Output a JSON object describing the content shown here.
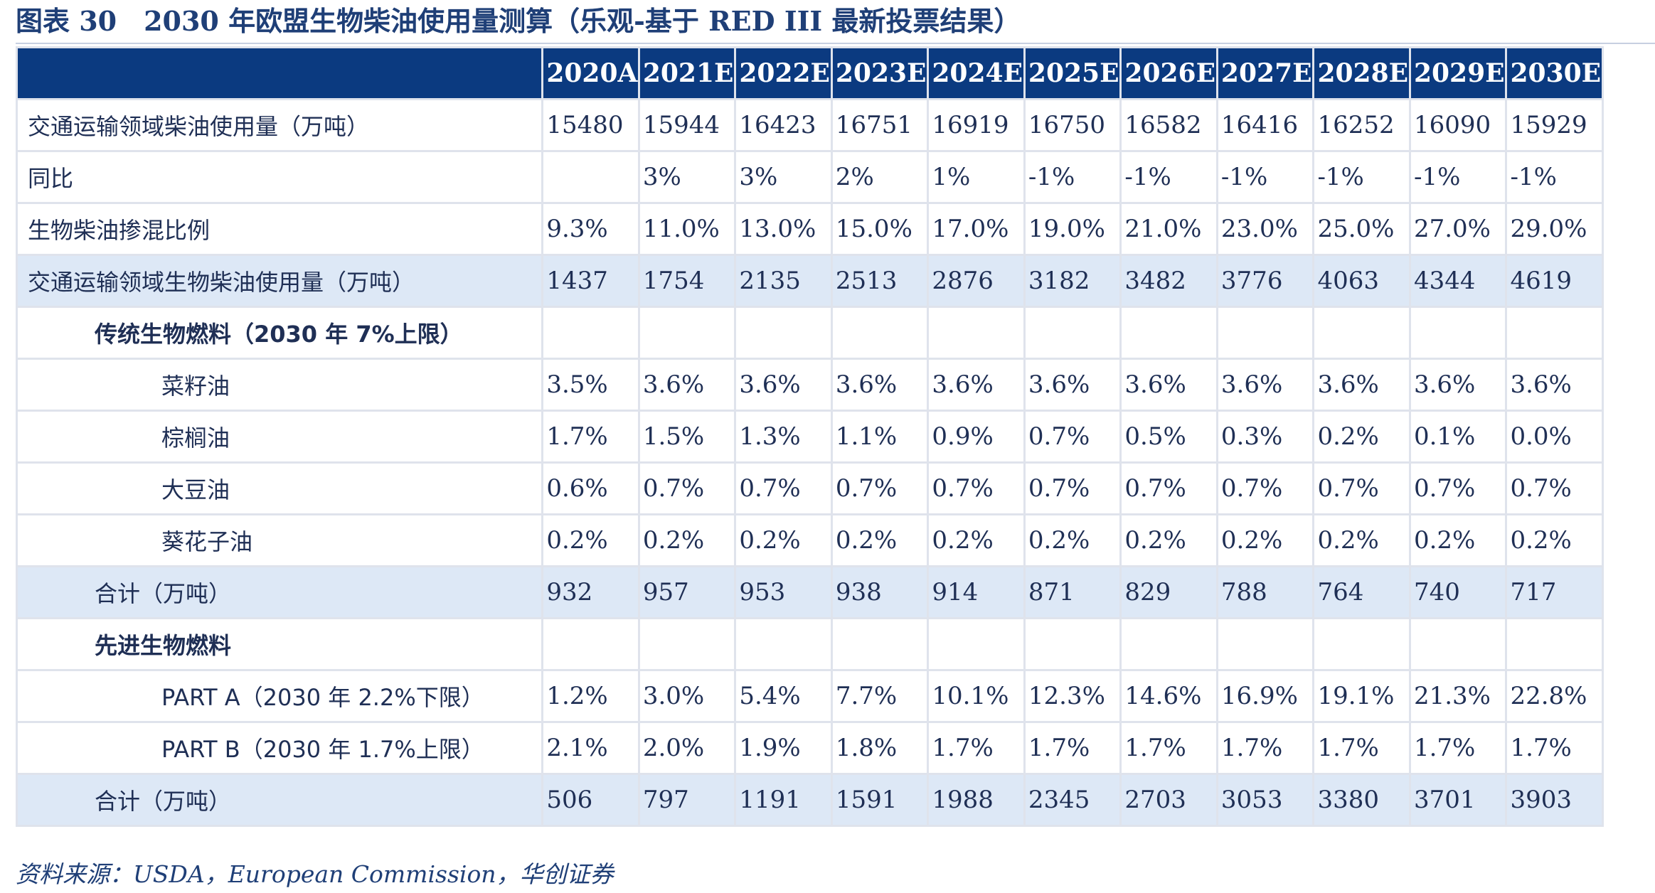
{
  "title": "图表 30　2030 年欧盟生物柴油使用量测算（乐观-基于 RED III 最新投票结果）",
  "table": {
    "columns": [
      "2020A",
      "2021E",
      "2022E",
      "2023E",
      "2024E",
      "2025E",
      "2026E",
      "2027E",
      "2028E",
      "2029E",
      "2030E"
    ],
    "rows": [
      {
        "label": "交通运输领域柴油使用量（万吨）",
        "values": [
          "15480",
          "15944",
          "16423",
          "16751",
          "16919",
          "16750",
          "16582",
          "16416",
          "16252",
          "16090",
          "15929"
        ]
      },
      {
        "label": "同比",
        "values": [
          "",
          "3%",
          "3%",
          "2%",
          "1%",
          "-1%",
          "-1%",
          "-1%",
          "-1%",
          "-1%",
          "-1%"
        ]
      },
      {
        "label": "生物柴油掺混比例",
        "values": [
          "9.3%",
          "11.0%",
          "13.0%",
          "15.0%",
          "17.0%",
          "19.0%",
          "21.0%",
          "23.0%",
          "25.0%",
          "27.0%",
          "29.0%"
        ]
      },
      {
        "label": "交通运输领域生物柴油使用量（万吨）",
        "values": [
          "1437",
          "1754",
          "2135",
          "2513",
          "2876",
          "3182",
          "3482",
          "3776",
          "4063",
          "4344",
          "4619"
        ]
      },
      {
        "label": "传统生物燃料（2030 年 7%上限）",
        "values": [
          "",
          "",
          "",
          "",
          "",
          "",
          "",
          "",
          "",
          "",
          ""
        ]
      },
      {
        "label": "菜籽油",
        "values": [
          "3.5%",
          "3.6%",
          "3.6%",
          "3.6%",
          "3.6%",
          "3.6%",
          "3.6%",
          "3.6%",
          "3.6%",
          "3.6%",
          "3.6%"
        ]
      },
      {
        "label": "棕榈油",
        "values": [
          "1.7%",
          "1.5%",
          "1.3%",
          "1.1%",
          "0.9%",
          "0.7%",
          "0.5%",
          "0.3%",
          "0.2%",
          "0.1%",
          "0.0%"
        ]
      },
      {
        "label": "大豆油",
        "values": [
          "0.6%",
          "0.7%",
          "0.7%",
          "0.7%",
          "0.7%",
          "0.7%",
          "0.7%",
          "0.7%",
          "0.7%",
          "0.7%",
          "0.7%"
        ]
      },
      {
        "label": "葵花子油",
        "values": [
          "0.2%",
          "0.2%",
          "0.2%",
          "0.2%",
          "0.2%",
          "0.2%",
          "0.2%",
          "0.2%",
          "0.2%",
          "0.2%",
          "0.2%"
        ]
      },
      {
        "label": "合计（万吨）",
        "values": [
          "932",
          "957",
          "953",
          "938",
          "914",
          "871",
          "829",
          "788",
          "764",
          "740",
          "717"
        ]
      },
      {
        "label": "先进生物燃料",
        "values": [
          "",
          "",
          "",
          "",
          "",
          "",
          "",
          "",
          "",
          "",
          ""
        ]
      },
      {
        "label": "PART A（2030 年 2.2%下限）",
        "values": [
          "1.2%",
          "3.0%",
          "5.4%",
          "7.7%",
          "10.1%",
          "12.3%",
          "14.6%",
          "16.9%",
          "19.1%",
          "21.3%",
          "22.8%"
        ]
      },
      {
        "label": "PART B（2030 年 1.7%上限）",
        "values": [
          "2.1%",
          "2.0%",
          "1.9%",
          "1.8%",
          "1.7%",
          "1.7%",
          "1.7%",
          "1.7%",
          "1.7%",
          "1.7%",
          "1.7%"
        ]
      },
      {
        "label": "合计（万吨）",
        "values": [
          "506",
          "797",
          "1191",
          "1591",
          "1988",
          "2345",
          "2703",
          "3053",
          "3380",
          "3701",
          "3903"
        ]
      }
    ]
  },
  "source": "资料来源：USDA，European Commission，华创证券",
  "colors": {
    "header_bg": "#0b3a80",
    "shade_bg": "#dde8f6",
    "title_text": "#1f3f77"
  }
}
